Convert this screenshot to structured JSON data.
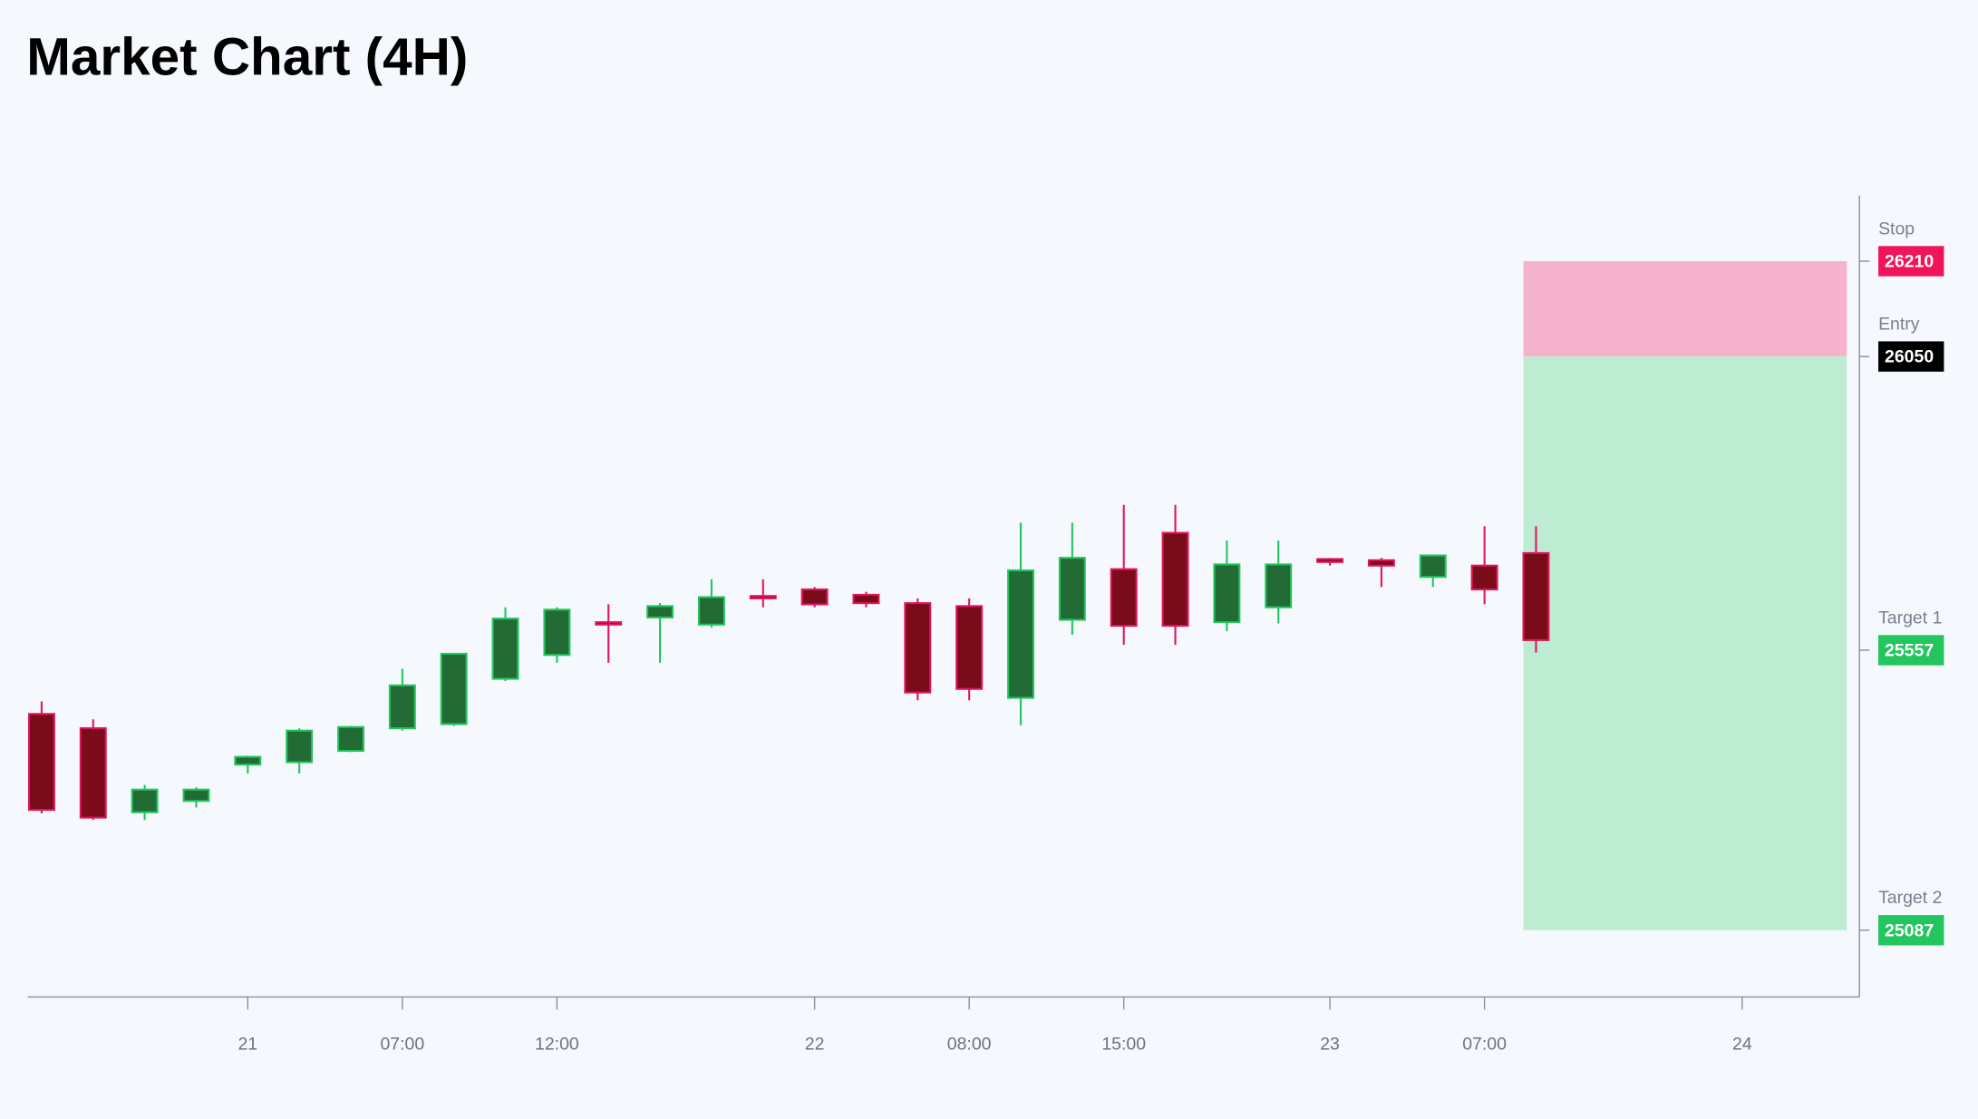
{
  "chart_data": {
    "type": "candlestick",
    "title": "Market Chart (4H)",
    "categories": [
      null,
      null,
      null,
      null,
      "21",
      null,
      null,
      "07:00",
      null,
      null,
      "12:00",
      null,
      null,
      null,
      null,
      "22",
      null,
      null,
      "08:00",
      null,
      null,
      "15:00",
      null,
      null,
      null,
      "23",
      null,
      null,
      "07:00",
      null,
      null,
      null,
      null,
      "24"
    ],
    "open": [
      25450,
      25426,
      25285,
      25304,
      25365,
      25369,
      25388,
      25426,
      25433,
      25509,
      25549,
      25604,
      25612,
      25600,
      25648,
      25659,
      25650,
      25636,
      25631,
      25477,
      25608,
      25693,
      25754,
      25604,
      25629,
      25710,
      25708,
      25680,
      25699,
      25720,
      null,
      null,
      null,
      null
    ],
    "high": [
      25471,
      25441,
      25331,
      25327,
      25380,
      25426,
      25430,
      25526,
      25551,
      25629,
      25629,
      25634,
      25636,
      25676,
      25676,
      25663,
      25655,
      25644,
      25644,
      25771,
      25771,
      25801,
      25801,
      25741,
      25741,
      25712,
      25712,
      25716,
      25765,
      25765,
      null,
      null,
      null,
      null
    ],
    "low": [
      25283,
      25272,
      25272,
      25293,
      25350,
      25350,
      25386,
      25422,
      25430,
      25505,
      25536,
      25536,
      25536,
      25595,
      25629,
      25629,
      25629,
      25473,
      25473,
      25431,
      25583,
      25566,
      25566,
      25589,
      25602,
      25699,
      25663,
      25663,
      25634,
      25553,
      null,
      null,
      null,
      null
    ],
    "close": [
      25289,
      25276,
      25323,
      25323,
      25378,
      25422,
      25428,
      25498,
      25551,
      25610,
      25625,
      25600,
      25631,
      25646,
      25644,
      25634,
      25636,
      25486,
      25492,
      25691,
      25712,
      25598,
      25598,
      25701,
      25701,
      25705,
      25699,
      25716,
      25659,
      25574,
      null,
      null,
      null,
      null
    ],
    "up_color": "#236b35",
    "up_border": "#22c55e",
    "down_color": "#7a0c1a",
    "down_border": "#e0145a",
    "ylim": [
      24975,
      26320
    ],
    "levels": [
      {
        "name": "Stop",
        "value": 26210,
        "color": "#f0145a"
      },
      {
        "name": "Entry",
        "value": 26050,
        "color": "#000000"
      },
      {
        "name": "Target 1",
        "value": 25557,
        "color": "#22c55e"
      },
      {
        "name": "Target 2",
        "value": 25087,
        "color": "#22c55e"
      }
    ],
    "risk_color": "#f4b3cb",
    "reward_color": "#bdecd3"
  }
}
